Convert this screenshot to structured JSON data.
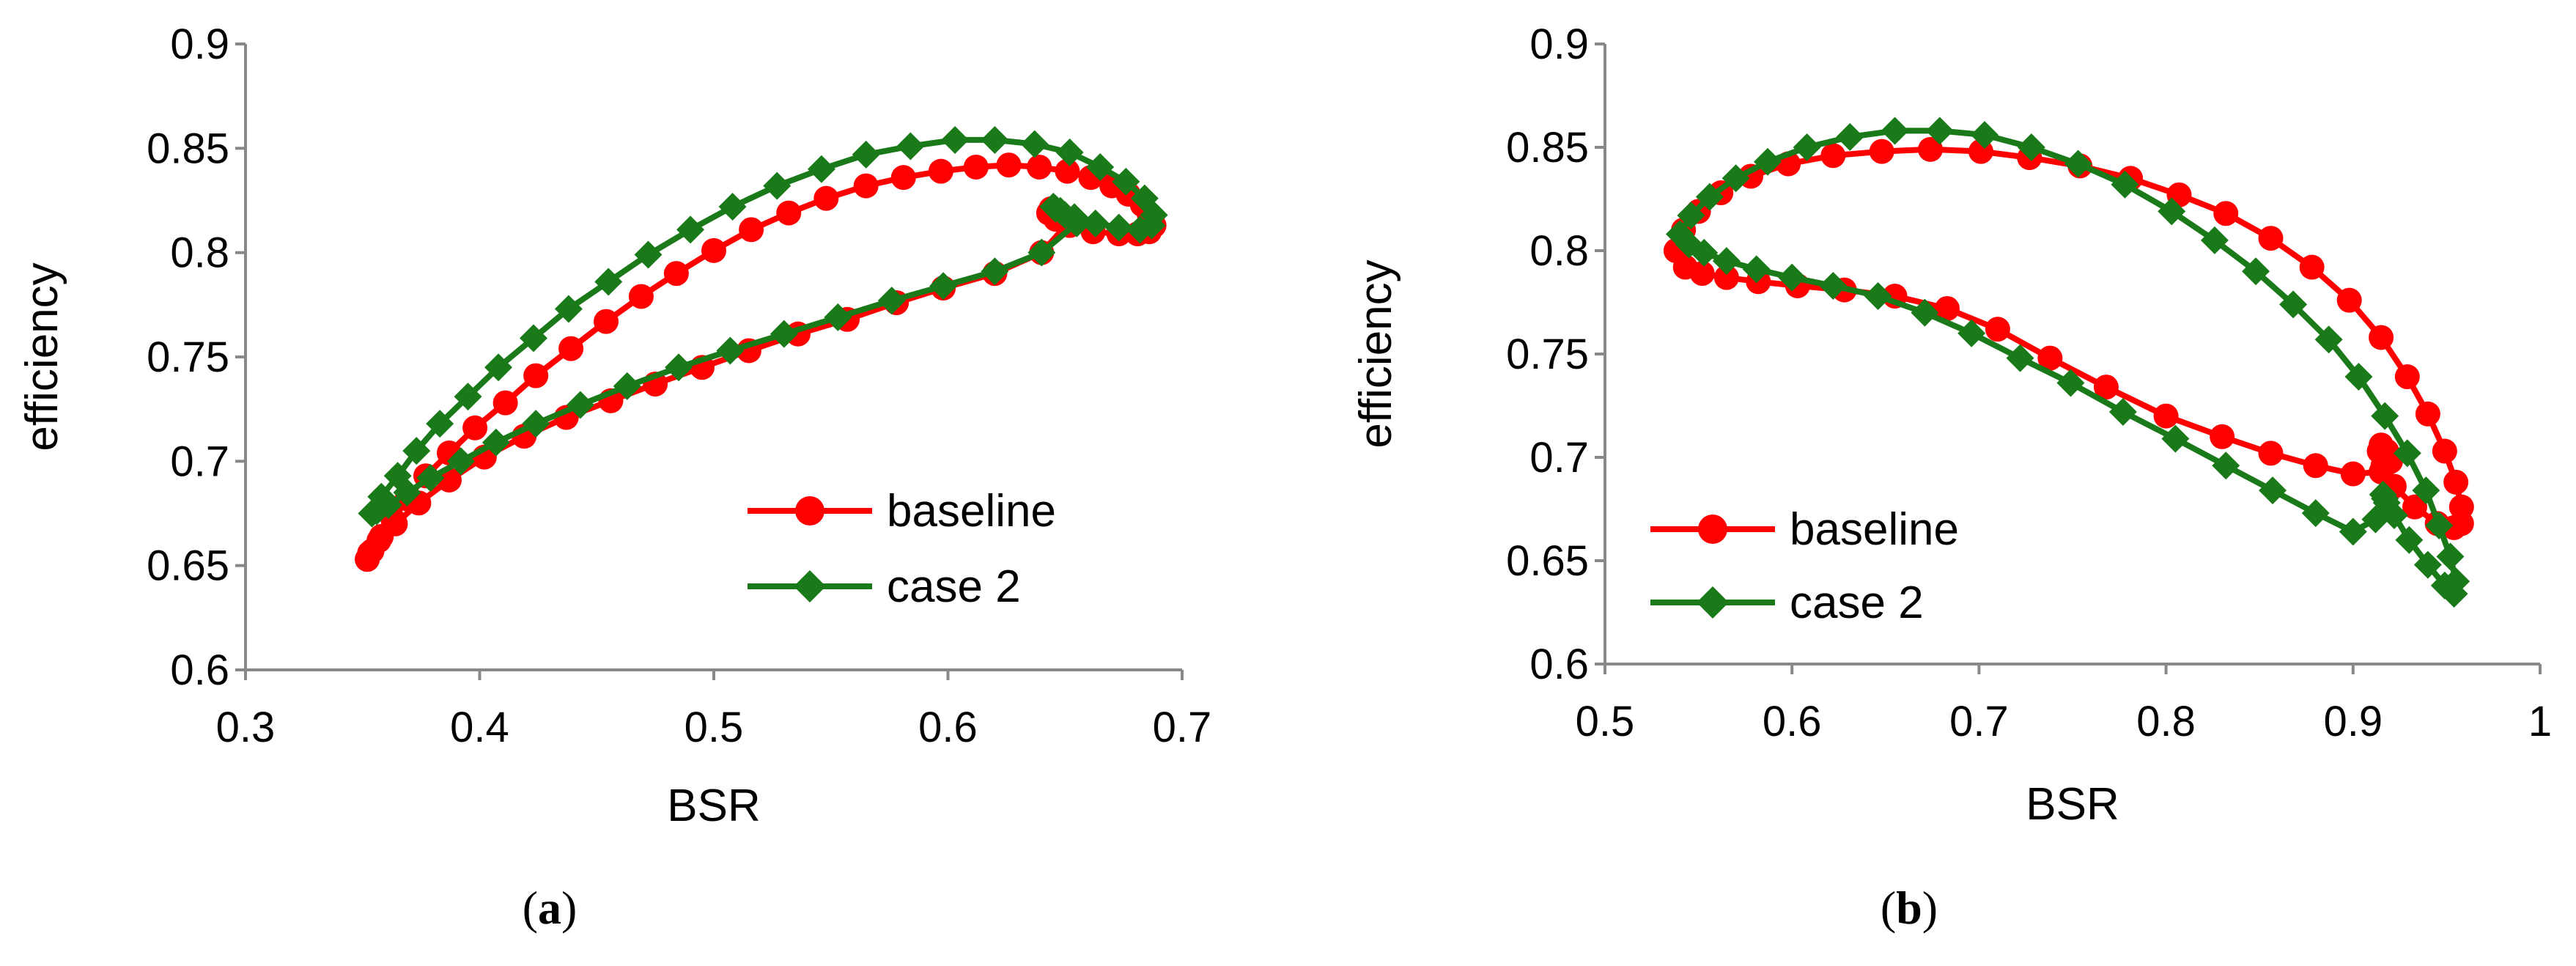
{
  "chart_data": [
    {
      "type": "line",
      "panel_label": "(a)",
      "panel_letter": "a",
      "xlabel": "BSR",
      "ylabel": "efficiency",
      "xlim": [
        0.3,
        0.7
      ],
      "ylim": [
        0.6,
        0.9
      ],
      "xticks": [
        "0.3",
        "0.4",
        "0.5",
        "0.6",
        "0.7"
      ],
      "yticks": [
        "0.6",
        "0.65",
        "0.7",
        "0.75",
        "0.8",
        "0.85",
        "0.9"
      ],
      "legend_position": "bottom-right",
      "series": [
        {
          "name": "baseline",
          "color": "#ff0000",
          "marker": "circle",
          "x": [
            0.352,
            0.354,
            0.358,
            0.363,
            0.369,
            0.377,
            0.387,
            0.398,
            0.411,
            0.424,
            0.439,
            0.454,
            0.469,
            0.484,
            0.5,
            0.516,
            0.532,
            0.548,
            0.565,
            0.581,
            0.597,
            0.612,
            0.626,
            0.639,
            0.651,
            0.661,
            0.67,
            0.677,
            0.683,
            0.686,
            0.688,
            0.686,
            0.681,
            0.673,
            0.662,
            0.652,
            0.646,
            0.643,
            0.644,
            0.647,
            0.652,
            0.64,
            0.62,
            0.598,
            0.578,
            0.557,
            0.536,
            0.515,
            0.495,
            0.475,
            0.456,
            0.437,
            0.419,
            0.402,
            0.387,
            0.374,
            0.364,
            0.357,
            0.353,
            0.352
          ],
          "y": [
            0.653,
            0.657,
            0.664,
            0.672,
            0.682,
            0.693,
            0.704,
            0.716,
            0.728,
            0.741,
            0.754,
            0.767,
            0.779,
            0.79,
            0.801,
            0.811,
            0.819,
            0.826,
            0.832,
            0.836,
            0.839,
            0.841,
            0.842,
            0.841,
            0.839,
            0.836,
            0.832,
            0.828,
            0.823,
            0.818,
            0.813,
            0.81,
            0.809,
            0.809,
            0.81,
            0.813,
            0.816,
            0.819,
            0.821,
            0.819,
            0.815,
            0.8,
            0.79,
            0.783,
            0.776,
            0.768,
            0.761,
            0.753,
            0.745,
            0.737,
            0.729,
            0.721,
            0.712,
            0.702,
            0.691,
            0.68,
            0.67,
            0.662,
            0.656,
            0.653
          ]
        },
        {
          "name": "case 2",
          "color": "#1a7a1a",
          "marker": "diamond",
          "x": [
            0.354,
            0.358,
            0.365,
            0.373,
            0.383,
            0.395,
            0.408,
            0.423,
            0.438,
            0.455,
            0.472,
            0.49,
            0.508,
            0.527,
            0.546,
            0.565,
            0.584,
            0.603,
            0.62,
            0.637,
            0.652,
            0.665,
            0.676,
            0.684,
            0.688,
            0.687,
            0.682,
            0.673,
            0.663,
            0.654,
            0.648,
            0.645,
            0.646,
            0.65,
            0.655,
            0.64,
            0.62,
            0.598,
            0.576,
            0.553,
            0.53,
            0.507,
            0.485,
            0.463,
            0.443,
            0.424,
            0.407,
            0.392,
            0.379,
            0.369,
            0.361,
            0.356,
            0.354
          ],
          "y": [
            0.675,
            0.683,
            0.693,
            0.705,
            0.718,
            0.731,
            0.745,
            0.759,
            0.773,
            0.786,
            0.799,
            0.811,
            0.822,
            0.832,
            0.84,
            0.847,
            0.851,
            0.854,
            0.854,
            0.852,
            0.848,
            0.841,
            0.834,
            0.826,
            0.818,
            0.813,
            0.811,
            0.812,
            0.814,
            0.817,
            0.82,
            0.822,
            0.821,
            0.818,
            0.814,
            0.8,
            0.791,
            0.784,
            0.777,
            0.769,
            0.761,
            0.753,
            0.745,
            0.736,
            0.727,
            0.718,
            0.709,
            0.7,
            0.692,
            0.685,
            0.679,
            0.676,
            0.675
          ]
        }
      ]
    },
    {
      "type": "line",
      "panel_label": "(b)",
      "panel_letter": "b",
      "xlabel": "BSR",
      "ylabel": "efficiency",
      "xlim": [
        0.5,
        1.0
      ],
      "ylim": [
        0.6,
        0.9
      ],
      "xticks": [
        "0.5",
        "0.6",
        "0.7",
        "0.8",
        "0.9",
        "1"
      ],
      "yticks": [
        "0.6",
        "0.65",
        "0.7",
        "0.75",
        "0.8",
        "0.85",
        "0.9"
      ],
      "legend_position": "bottom-left",
      "series": [
        {
          "name": "baseline",
          "color": "#ff0000",
          "marker": "circle",
          "x": [
            0.538,
            0.542,
            0.55,
            0.562,
            0.578,
            0.598,
            0.622,
            0.648,
            0.674,
            0.701,
            0.727,
            0.754,
            0.781,
            0.807,
            0.832,
            0.856,
            0.878,
            0.898,
            0.915,
            0.929,
            0.94,
            0.949,
            0.955,
            0.958,
            0.958,
            0.954,
            0.945,
            0.933,
            0.922,
            0.916,
            0.914,
            0.915,
            0.918,
            0.92,
            0.915,
            0.9,
            0.88,
            0.856,
            0.83,
            0.8,
            0.768,
            0.738,
            0.71,
            0.683,
            0.655,
            0.628,
            0.603,
            0.582,
            0.565,
            0.552,
            0.543,
            0.538
          ],
          "y": [
            0.8,
            0.81,
            0.819,
            0.828,
            0.836,
            0.842,
            0.846,
            0.848,
            0.849,
            0.848,
            0.845,
            0.841,
            0.835,
            0.827,
            0.818,
            0.806,
            0.792,
            0.776,
            0.758,
            0.739,
            0.721,
            0.703,
            0.688,
            0.676,
            0.668,
            0.666,
            0.668,
            0.676,
            0.686,
            0.696,
            0.703,
            0.706,
            0.703,
            0.698,
            0.693,
            0.692,
            0.696,
            0.702,
            0.71,
            0.72,
            0.734,
            0.748,
            0.762,
            0.772,
            0.778,
            0.781,
            0.783,
            0.785,
            0.787,
            0.789,
            0.792,
            0.8
          ]
        },
        {
          "name": "case 2",
          "color": "#1a7a1a",
          "marker": "diamond",
          "x": [
            0.54,
            0.546,
            0.556,
            0.57,
            0.587,
            0.608,
            0.631,
            0.655,
            0.679,
            0.703,
            0.728,
            0.753,
            0.778,
            0.803,
            0.826,
            0.848,
            0.868,
            0.887,
            0.903,
            0.917,
            0.929,
            0.939,
            0.946,
            0.952,
            0.955,
            0.954,
            0.949,
            0.94,
            0.93,
            0.922,
            0.917,
            0.916,
            0.918,
            0.912,
            0.9,
            0.88,
            0.857,
            0.832,
            0.805,
            0.777,
            0.749,
            0.722,
            0.696,
            0.671,
            0.646,
            0.622,
            0.6,
            0.581,
            0.565,
            0.553,
            0.545,
            0.54
          ],
          "y": [
            0.808,
            0.817,
            0.826,
            0.835,
            0.843,
            0.85,
            0.855,
            0.858,
            0.858,
            0.856,
            0.85,
            0.842,
            0.832,
            0.819,
            0.805,
            0.79,
            0.774,
            0.757,
            0.739,
            0.72,
            0.702,
            0.684,
            0.667,
            0.652,
            0.64,
            0.634,
            0.638,
            0.648,
            0.66,
            0.672,
            0.68,
            0.682,
            0.678,
            0.67,
            0.664,
            0.673,
            0.684,
            0.696,
            0.709,
            0.722,
            0.736,
            0.748,
            0.76,
            0.77,
            0.778,
            0.783,
            0.787,
            0.791,
            0.795,
            0.799,
            0.803,
            0.808
          ]
        }
      ]
    }
  ]
}
